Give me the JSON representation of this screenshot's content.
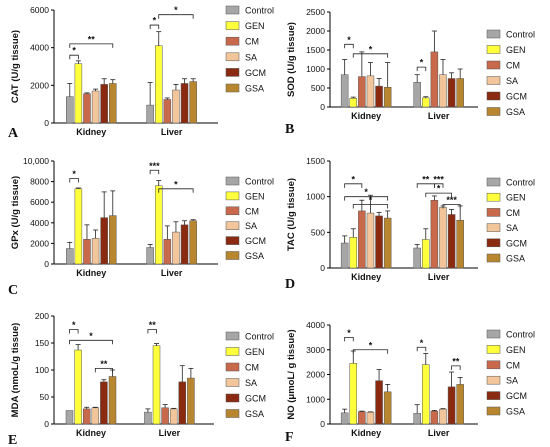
{
  "figure": {
    "legend_labels": [
      "Control",
      "GEN",
      "CM",
      "SA",
      "GCM",
      "GSA"
    ],
    "colors": {
      "Control": "#a6a6a6",
      "GEN": "#ffff3c",
      "CM": "#c8694c",
      "SA": "#f2c69a",
      "GCM": "#8a2a10",
      "GSA": "#b8862e"
    }
  },
  "chart_data": [
    {
      "type": "bar",
      "panel": "A",
      "categories": [
        "Kidney",
        "Liver"
      ],
      "ylabel": "CAT (U/g tissue)",
      "ylim": [
        0,
        6000
      ],
      "yticks": [
        "0",
        "2000",
        "4000",
        "6000"
      ],
      "legend": "right",
      "series": [
        {
          "name": "Control",
          "values": [
            1400,
            950
          ],
          "errors": [
            700,
            1200
          ]
        },
        {
          "name": "GEN",
          "values": [
            3150,
            4100
          ],
          "errors": [
            150,
            750
          ]
        },
        {
          "name": "CM",
          "values": [
            1550,
            1250
          ],
          "errors": [
            50,
            80
          ]
        },
        {
          "name": "SA",
          "values": [
            1700,
            1750
          ],
          "errors": [
            100,
            300
          ]
        },
        {
          "name": "GCM",
          "values": [
            2050,
            2100
          ],
          "errors": [
            300,
            250
          ]
        },
        {
          "name": "GSA",
          "values": [
            2100,
            2200
          ],
          "errors": [
            200,
            150
          ]
        }
      ],
      "significance": [
        {
          "label": "*",
          "organ": 0,
          "from": 0,
          "to": 1,
          "level": 3600
        },
        {
          "label": "**",
          "organ": 0,
          "from": 0,
          "to": 5,
          "level": 4200
        },
        {
          "label": "*",
          "organ": 1,
          "from": 0,
          "to": 1,
          "level": 5200
        },
        {
          "label": "*",
          "organ": 1,
          "from": 1,
          "to": 5,
          "level": 5750
        }
      ]
    },
    {
      "type": "bar",
      "panel": "B",
      "categories": [
        "Kidney",
        "Liver"
      ],
      "ylabel": "SOD (U/g tissue)",
      "ylim": [
        0,
        2500
      ],
      "yticks": [
        "0",
        "500",
        "1000",
        "1500",
        "2000",
        "2500"
      ],
      "legend": "right",
      "series": [
        {
          "name": "Control",
          "values": [
            850,
            650
          ],
          "errors": [
            400,
            200
          ]
        },
        {
          "name": "GEN",
          "values": [
            230,
            240
          ],
          "errors": [
            30,
            30
          ]
        },
        {
          "name": "CM",
          "values": [
            800,
            1450
          ],
          "errors": [
            650,
            550
          ]
        },
        {
          "name": "SA",
          "values": [
            820,
            850
          ],
          "errors": [
            350,
            400
          ]
        },
        {
          "name": "GCM",
          "values": [
            550,
            750
          ],
          "errors": [
            200,
            150
          ]
        },
        {
          "name": "GSA",
          "values": [
            520,
            750
          ],
          "errors": [
            650,
            250
          ]
        }
      ],
      "significance": [
        {
          "label": "*",
          "organ": 0,
          "from": 0,
          "to": 1,
          "level": 1650
        },
        {
          "label": "*",
          "organ": 0,
          "from": 1,
          "to": 5,
          "level": 1400
        },
        {
          "label": "*",
          "organ": 1,
          "from": 0,
          "to": 1,
          "level": 1050
        }
      ]
    },
    {
      "type": "bar",
      "panel": "C",
      "categories": [
        "Kidney",
        "Liver"
      ],
      "ylabel": "GPx (U/g tissue)",
      "ylim": [
        0,
        10000
      ],
      "yticks": [
        "0",
        "2000",
        "4000",
        "6000",
        "8000",
        "10,000"
      ],
      "legend": "right",
      "series": [
        {
          "name": "Control",
          "values": [
            1500,
            1600
          ],
          "errors": [
            600,
            300
          ]
        },
        {
          "name": "GEN",
          "values": [
            7300,
            7600
          ],
          "errors": [
            80,
            500
          ]
        },
        {
          "name": "CM",
          "values": [
            2400,
            2400
          ],
          "errors": [
            1400,
            1300
          ]
        },
        {
          "name": "SA",
          "values": [
            2500,
            3100
          ],
          "errors": [
            800,
            1000
          ]
        },
        {
          "name": "GCM",
          "values": [
            4500,
            3800
          ],
          "errors": [
            2500,
            400
          ]
        },
        {
          "name": "GSA",
          "values": [
            4700,
            4200
          ],
          "errors": [
            2400,
            100
          ]
        }
      ],
      "significance": [
        {
          "label": "*",
          "organ": 0,
          "from": 0,
          "to": 1,
          "level": 8300
        },
        {
          "label": "***",
          "organ": 1,
          "from": 0,
          "to": 1,
          "level": 9100
        },
        {
          "label": "*",
          "organ": 1,
          "from": 1,
          "to": 5,
          "level": 7300
        }
      ]
    },
    {
      "type": "bar",
      "panel": "D",
      "categories": [
        "Kidney",
        "Liver"
      ],
      "ylabel": "TAC (U/g tissue)",
      "ylim": [
        0,
        1500
      ],
      "yticks": [
        "0",
        "500",
        "1000",
        "1500"
      ],
      "legend": "right",
      "series": [
        {
          "name": "Control",
          "values": [
            350,
            280
          ],
          "errors": [
            100,
            50
          ]
        },
        {
          "name": "GEN",
          "values": [
            430,
            400
          ],
          "errors": [
            120,
            150
          ]
        },
        {
          "name": "CM",
          "values": [
            800,
            950
          ],
          "errors": [
            150,
            60
          ]
        },
        {
          "name": "SA",
          "values": [
            770,
            850
          ],
          "errors": [
            250,
            20
          ]
        },
        {
          "name": "GCM",
          "values": [
            730,
            750
          ],
          "errors": [
            50,
            70
          ]
        },
        {
          "name": "GSA",
          "values": [
            700,
            670
          ],
          "errors": [
            100,
            200
          ]
        }
      ],
      "significance": [
        {
          "label": "*",
          "organ": 0,
          "from": 0,
          "to": 2,
          "level": 1180
        },
        {
          "label": "*",
          "organ": 0,
          "from": 0,
          "to": 5,
          "level": 1000
        },
        {
          "label": "*",
          "organ": 0,
          "from": 1,
          "to": 5,
          "level": 890
        },
        {
          "label": "**",
          "organ": 1,
          "from": 0,
          "to": 2,
          "level": 1180
        },
        {
          "label": "***",
          "organ": 1,
          "from": 2,
          "to": 3,
          "level": 1180
        },
        {
          "label": "*",
          "organ": 1,
          "from": 1,
          "to": 4,
          "level": 1050
        },
        {
          "label": "***",
          "organ": 1,
          "from": 3,
          "to": 5,
          "level": 890
        }
      ]
    },
    {
      "type": "bar",
      "panel": "E",
      "categories": [
        "Kidney",
        "Liver"
      ],
      "ylabel": "MDA (nmoL/g tissue)",
      "ylim": [
        0,
        200
      ],
      "yticks": [
        "0",
        "50",
        "100",
        "150",
        "200"
      ],
      "legend": "right",
      "series": [
        {
          "name": "Control",
          "values": [
            25,
            22
          ],
          "errors": [
            0,
            6
          ]
        },
        {
          "name": "GEN",
          "values": [
            137,
            145
          ],
          "errors": [
            10,
            4
          ]
        },
        {
          "name": "CM",
          "values": [
            28,
            30
          ],
          "errors": [
            3,
            6
          ]
        },
        {
          "name": "SA",
          "values": [
            30,
            28
          ],
          "errors": [
            1,
            1
          ]
        },
        {
          "name": "GCM",
          "values": [
            78,
            78
          ],
          "errors": [
            4,
            30
          ]
        },
        {
          "name": "GSA",
          "values": [
            88,
            85
          ],
          "errors": [
            12,
            18
          ]
        }
      ],
      "significance": [
        {
          "label": "*",
          "organ": 0,
          "from": 0,
          "to": 1,
          "level": 175
        },
        {
          "label": "*",
          "organ": 0,
          "from": 0,
          "to": 5,
          "level": 155
        },
        {
          "label": "**",
          "organ": 0,
          "from": 3,
          "to": 5,
          "level": 103
        },
        {
          "label": "**",
          "organ": 1,
          "from": 0,
          "to": 1,
          "level": 175
        }
      ]
    },
    {
      "type": "bar",
      "panel": "F",
      "categories": [
        "Kidney",
        "Liver"
      ],
      "ylabel": "NO (μmoL/ g tissue)",
      "ylim": [
        0,
        4000
      ],
      "yticks": [
        "0",
        "1000",
        "2000",
        "3000",
        "4000"
      ],
      "legend": "right",
      "series": [
        {
          "name": "Control",
          "values": [
            450,
            430
          ],
          "errors": [
            150,
            350
          ]
        },
        {
          "name": "GEN",
          "values": [
            2450,
            2400
          ],
          "errors": [
            500,
            450
          ]
        },
        {
          "name": "CM",
          "values": [
            500,
            520
          ],
          "errors": [
            20,
            30
          ]
        },
        {
          "name": "SA",
          "values": [
            480,
            600
          ],
          "errors": [
            10,
            20
          ]
        },
        {
          "name": "GCM",
          "values": [
            1750,
            1500
          ],
          "errors": [
            450,
            600
          ]
        },
        {
          "name": "GSA",
          "values": [
            1300,
            1600
          ],
          "errors": [
            300,
            280
          ]
        }
      ],
      "significance": [
        {
          "label": "*",
          "organ": 0,
          "from": 0,
          "to": 1,
          "level": 3500
        },
        {
          "label": "*",
          "organ": 0,
          "from": 1,
          "to": 5,
          "level": 3000
        },
        {
          "label": "*",
          "organ": 1,
          "from": 0,
          "to": 1,
          "level": 3100
        },
        {
          "label": "**",
          "organ": 1,
          "from": 4,
          "to": 5,
          "level": 2350
        }
      ]
    }
  ]
}
